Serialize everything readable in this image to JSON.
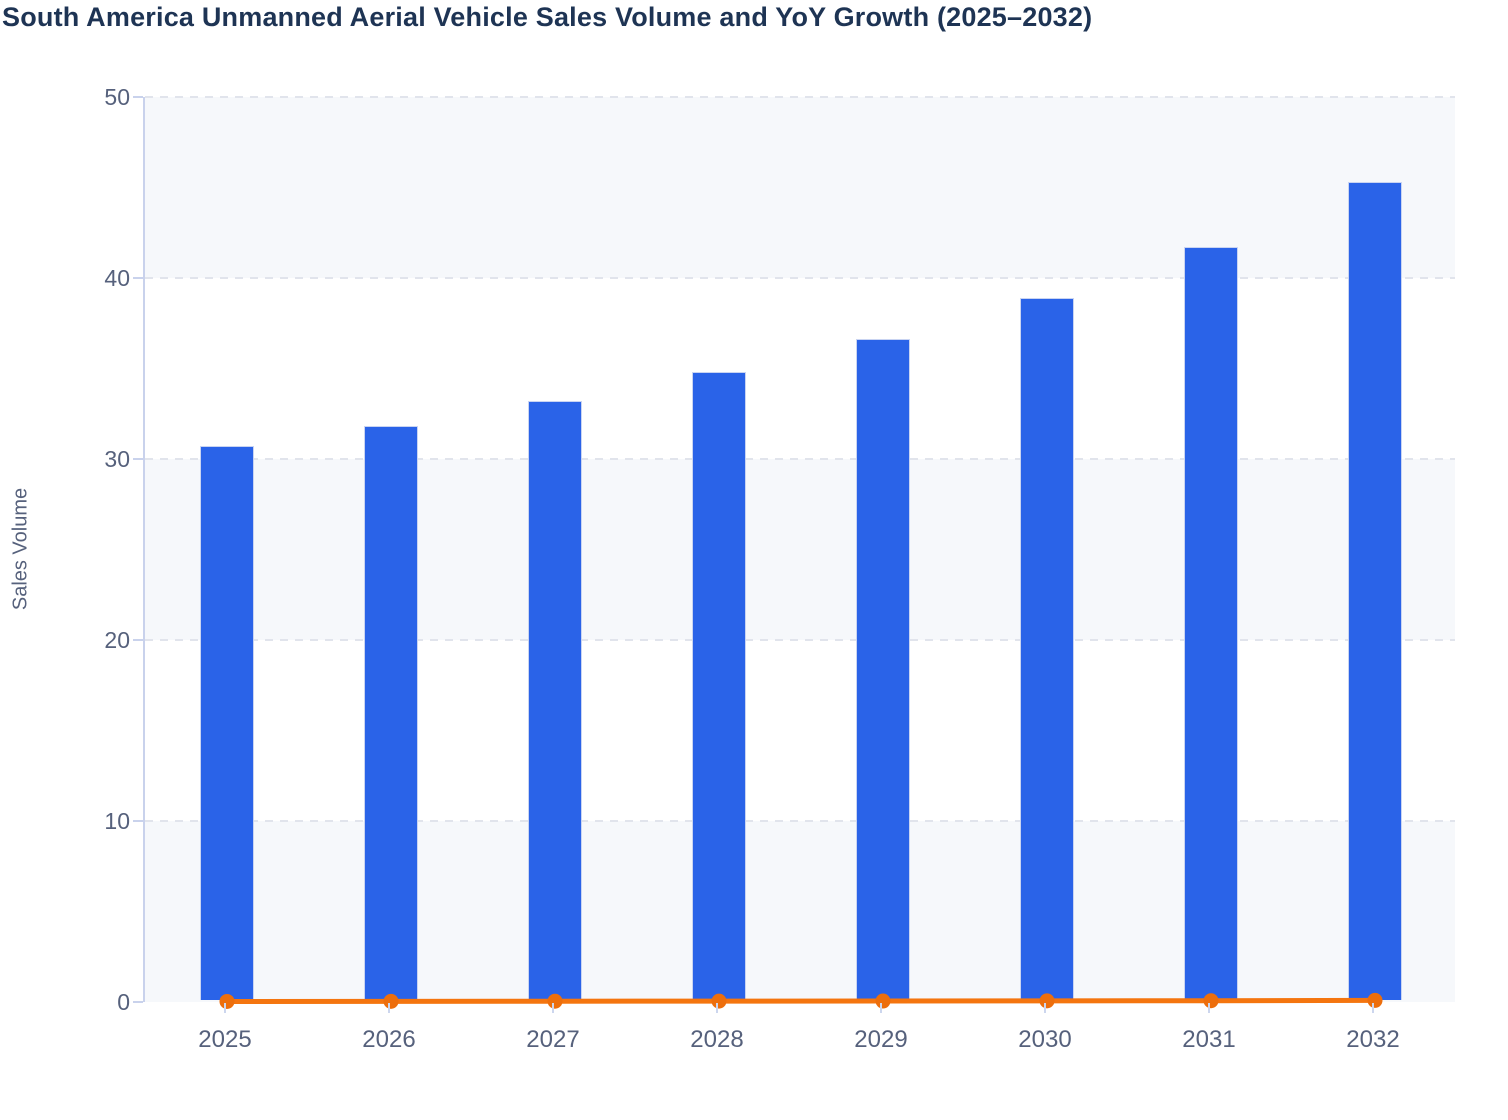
{
  "chart_data": {
    "type": "bar+line",
    "title": "South America Unmanned Aerial Vehicle Sales Volume and YoY Growth (2025–2032)",
    "xlabel": "",
    "ylabel": "Sales Volume",
    "categories": [
      "2025",
      "2026",
      "2027",
      "2028",
      "2029",
      "2030",
      "2031",
      "2032"
    ],
    "series": [
      {
        "name": "Sales Volume",
        "type": "bar",
        "color": "#2a63e8",
        "values": [
          30.6,
          31.7,
          33.1,
          34.7,
          36.5,
          38.8,
          41.6,
          45.2
        ]
      },
      {
        "name": "YoY Growth",
        "type": "line",
        "color": "#f4750f",
        "marker_color": "#ed6e0c",
        "values": [
          0.03,
          0.036,
          0.044,
          0.048,
          0.052,
          0.063,
          0.072,
          0.087
        ]
      }
    ],
    "ylim": [
      0,
      50
    ],
    "yticks": [
      0,
      10,
      20,
      30,
      40,
      50
    ],
    "grid": "horizontal-dashed",
    "legend_position": "none",
    "plot_band_colors": [
      "#f6f8fb",
      "#ffffff"
    ]
  },
  "colors": {
    "title": "#1e3454",
    "axis_label": "#56617c",
    "axis_line": "#c9d2ec",
    "gridline": "#e1e4ec",
    "band": "#f6f8fb",
    "background": "#ffffff"
  }
}
